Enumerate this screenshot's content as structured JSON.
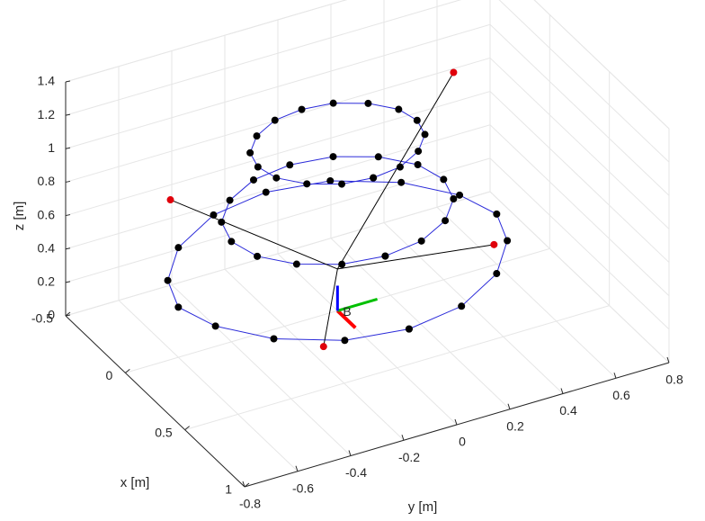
{
  "chart_data": {
    "type": "scatter3d",
    "grid": true,
    "axes": {
      "x": {
        "label": "x [m]",
        "range": [
          -0.5,
          1.0
        ],
        "ticks": [
          -0.5,
          0,
          0.5,
          1
        ],
        "tick_labels": [
          "-0.5",
          "0",
          "0.5",
          "1"
        ]
      },
      "y": {
        "label": "y [m]",
        "range": [
          -0.8,
          0.8
        ],
        "ticks": [
          -0.8,
          -0.6,
          -0.4,
          -0.2,
          0,
          0.2,
          0.4,
          0.6,
          0.8
        ],
        "tick_labels": [
          "-0.8",
          "-0.6",
          "-0.4",
          "-0.2",
          "0",
          "0.2",
          "0.4",
          "0.6",
          "0.8"
        ]
      },
      "z": {
        "label": "z [m]",
        "range": [
          0,
          1.4
        ],
        "ticks": [
          0,
          0.2,
          0.4,
          0.6,
          0.8,
          1.0,
          1.2,
          1.4
        ],
        "tick_labels": [
          "0",
          "0.2",
          "0.4",
          "0.6",
          "0.8",
          "1",
          "1.2",
          "1.4"
        ]
      }
    },
    "colors": {
      "trajectory": "#2b2bd9",
      "points": "#000000",
      "anchors": "#e0000b",
      "frame_x": "#ff0000",
      "frame_y": "#00c000",
      "frame_z": "#0000ff",
      "links": "#000000",
      "grid": "#e6e6e6",
      "axis": "#262626"
    },
    "origin_label": "B",
    "series": [
      {
        "kind": "trajectory",
        "points": [
          [
            0.6,
            0.0,
            0.3
          ],
          [
            0.55,
            -0.22,
            0.3
          ],
          [
            0.4,
            -0.42,
            0.3
          ],
          [
            0.2,
            -0.55,
            0.3
          ],
          [
            0.0,
            -0.6,
            0.3
          ],
          [
            -0.2,
            -0.55,
            0.3
          ],
          [
            -0.4,
            -0.42,
            0.3
          ],
          [
            -0.55,
            -0.22,
            0.3
          ],
          [
            -0.6,
            0.0,
            0.3
          ],
          [
            -0.55,
            0.22,
            0.3
          ],
          [
            -0.4,
            0.42,
            0.3
          ],
          [
            -0.2,
            0.55,
            0.3
          ],
          [
            0.0,
            0.6,
            0.3
          ],
          [
            0.2,
            0.55,
            0.3
          ],
          [
            0.4,
            0.42,
            0.3
          ],
          [
            0.55,
            0.22,
            0.3
          ],
          [
            0.6,
            0.0,
            0.3
          ]
        ]
      },
      {
        "kind": "trajectory",
        "points": [
          [
            0.4,
            0.0,
            0.6
          ],
          [
            0.37,
            -0.15,
            0.6
          ],
          [
            0.28,
            -0.28,
            0.6
          ],
          [
            0.15,
            -0.37,
            0.6
          ],
          [
            0.0,
            -0.4,
            0.6
          ],
          [
            -0.15,
            -0.37,
            0.6
          ],
          [
            -0.28,
            -0.28,
            0.6
          ],
          [
            -0.37,
            -0.15,
            0.6
          ],
          [
            -0.4,
            0.0,
            0.6
          ],
          [
            -0.37,
            0.15,
            0.6
          ],
          [
            -0.28,
            0.28,
            0.6
          ],
          [
            -0.15,
            0.37,
            0.6
          ],
          [
            0.0,
            0.4,
            0.6
          ],
          [
            0.15,
            0.37,
            0.6
          ],
          [
            0.28,
            0.28,
            0.6
          ],
          [
            0.37,
            0.15,
            0.6
          ],
          [
            0.4,
            0.0,
            0.6
          ]
        ]
      },
      {
        "kind": "trajectory",
        "points": [
          [
            0.3,
            0.0,
            1.0
          ],
          [
            0.28,
            -0.11,
            1.0
          ],
          [
            0.21,
            -0.21,
            1.0
          ],
          [
            0.11,
            -0.28,
            1.0
          ],
          [
            0.0,
            -0.3,
            1.0
          ],
          [
            -0.11,
            -0.28,
            1.0
          ],
          [
            -0.21,
            -0.21,
            1.0
          ],
          [
            -0.28,
            -0.11,
            1.0
          ],
          [
            -0.3,
            0.0,
            1.0
          ],
          [
            -0.28,
            0.11,
            1.0
          ],
          [
            -0.21,
            0.21,
            1.0
          ],
          [
            -0.11,
            0.28,
            1.0
          ],
          [
            0.0,
            0.3,
            1.0
          ],
          [
            0.11,
            0.28,
            1.0
          ],
          [
            0.21,
            0.21,
            1.0
          ],
          [
            0.28,
            0.11,
            1.0
          ],
          [
            0.3,
            0.0,
            1.0
          ]
        ]
      }
    ],
    "anchors": [
      [
        0.55,
        -0.3,
        0.3
      ],
      [
        -0.4,
        -0.45,
        0.6
      ],
      [
        0.2,
        0.5,
        0.3
      ],
      [
        -0.25,
        0.55,
        1.0
      ]
    ],
    "links": [
      [
        [
          0.0,
          0.0,
          0.25
        ],
        [
          0.55,
          -0.3,
          0.3
        ]
      ],
      [
        [
          0.0,
          0.0,
          0.25
        ],
        [
          -0.4,
          -0.45,
          0.6
        ]
      ],
      [
        [
          0.0,
          0.0,
          0.25
        ],
        [
          0.2,
          0.5,
          0.3
        ]
      ],
      [
        [
          0.0,
          0.0,
          0.25
        ],
        [
          -0.25,
          0.55,
          1.0
        ]
      ]
    ]
  }
}
